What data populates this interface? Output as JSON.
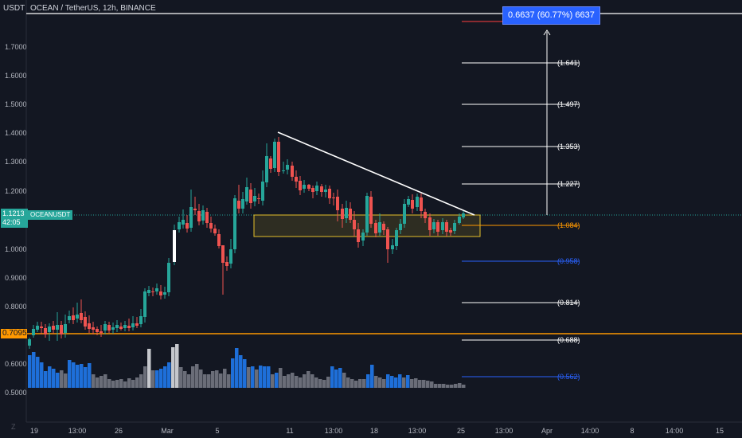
{
  "header": {
    "currency": "USDT",
    "symbol_title": "OCEAN / TetherUS, 12h, BINANCE"
  },
  "price_axis": {
    "ticks": [
      "1.7000",
      "1.6000",
      "1.5000",
      "1.4000",
      "1.3000",
      "1.2000",
      "1.0000",
      "0.9000",
      "0.8000",
      "0.6000",
      "0.5000"
    ],
    "last_price": "1.1213",
    "countdown": "42:05",
    "level_label": "0.7095"
  },
  "ticker_tag": "OCEANUSDT",
  "time_axis": {
    "ticks": [
      "19",
      "13:00",
      "26",
      "Mar",
      "5",
      "11",
      "13:00",
      "18",
      "13:00",
      "25",
      "13:00",
      "Apr",
      "14:00",
      "8",
      "14:00",
      "15"
    ]
  },
  "zoom_icon": "Z",
  "measure_label": "0.6637 (60.77%) 6637",
  "fib_levels": [
    "(1.641)",
    "(1.497)",
    "(1.353)",
    "(1.227)",
    "(1.084)",
    "(0.958)",
    "(0.814)",
    "(0.688)",
    "(0.562)"
  ],
  "colors": {
    "background": "#131722",
    "up": "#26a69a",
    "down": "#ef5350",
    "volume_blue": "#1e6fd9",
    "volume_gray": "#6a6d78",
    "highlight": "#ff9800",
    "box_border": "#e6c02a",
    "measure": "#2962ff",
    "fib_orange": "#ff9800",
    "fib_blue": "#2962ff"
  }
}
